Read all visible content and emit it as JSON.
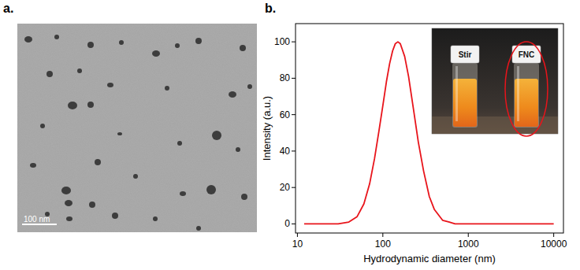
{
  "panel_a": {
    "label": "a.",
    "scale_bar": "100 nm"
  },
  "panel_b_label": "b.",
  "chart_data": {
    "type": "line",
    "xlabel": "Hydrodynamic diameter (nm)",
    "ylabel": "Intensity (a.u.)",
    "x": [
      12,
      20,
      30,
      40,
      50,
      60,
      70,
      80,
      90,
      100,
      110,
      120,
      130,
      140,
      150,
      160,
      180,
      200,
      230,
      260,
      300,
      350,
      400,
      500,
      600,
      700,
      800,
      1000,
      2000,
      5000,
      10000
    ],
    "values": [
      0,
      0,
      0,
      1,
      4,
      11,
      22,
      36,
      51,
      65,
      78,
      88,
      95,
      99,
      100,
      99,
      92,
      81,
      62,
      45,
      29,
      15,
      8,
      2,
      1,
      0,
      0,
      0,
      0,
      0,
      0
    ],
    "color": "#e8141b",
    "log": "x",
    "xlim": [
      9.5,
      13000
    ],
    "xticks": [
      10,
      100,
      1000,
      10000
    ],
    "ylim": [
      -5,
      110
    ],
    "yticks": [
      0,
      20,
      40,
      60,
      80,
      100
    ],
    "annotations": [
      "Stir",
      "FNC"
    ]
  }
}
